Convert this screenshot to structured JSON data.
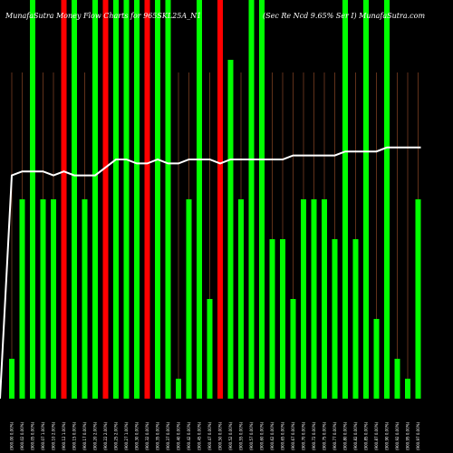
{
  "chart_data": {
    "type": "bar",
    "title_left": "MunafaSutra  Money Flow  Charts for 965SKL25A_N1",
    "title_right": "(Sec Re   Ncd 9.65% Ser I)  MunafaSutra.com",
    "categories": [
      "(900.00 0.00%)",
      "(900.02 0.00%)",
      "(900.05 0.00%)",
      "(900.07 1.00%)",
      "(900.10 2.00%)",
      "(900.12 1.00%)",
      "(900.15 0.00%)",
      "(900.17 0.00%)",
      "(900.20 2.00%)",
      "(900.22 2.00%)",
      "(900.25 2.00%)",
      "(900.27 1.00%)",
      "(900.30 0.00%)",
      "(900.32 0.00%)",
      "(900.35 0.00%)",
      "(900.37 0.00%)",
      "(900.40 0.00%)",
      "(900.42 0.00%)",
      "(900.45 0.00%)",
      "(900.47 0.00%)",
      "(900.50 0.00%)",
      "(900.52 0.00%)",
      "(900.55 0.00%)",
      "(900.57 0.00%)",
      "(900.60 0.00%)",
      "(900.62 0.00%)",
      "(900.65 0.00%)",
      "(900.67 0.00%)",
      "(900.70 0.00%)",
      "(900.72 0.00%)",
      "(900.75 0.00%)",
      "(900.77 0.00%)",
      "(900.80 0.00%)",
      "(900.82 0.00%)",
      "(900.85 0.00%)",
      "(900.87 0.00%)",
      "(900.90 0.00%)",
      "(900.92 0.00%)",
      "(900.95 0.00%)",
      "(900.97 0.00%)"
    ],
    "values": [
      10,
      50,
      100,
      50,
      50,
      100,
      100,
      50,
      100,
      100,
      100,
      100,
      100,
      100,
      100,
      100,
      5,
      50,
      100,
      25,
      100,
      85,
      50,
      100,
      100,
      40,
      40,
      25,
      50,
      50,
      50,
      40,
      100,
      40,
      100,
      20,
      100,
      10,
      5,
      50
    ],
    "colors": [
      "green",
      "green",
      "green",
      "green",
      "green",
      "red",
      "green",
      "green",
      "green",
      "red",
      "green",
      "green",
      "green",
      "red",
      "green",
      "green",
      "green",
      "green",
      "green",
      "green",
      "red",
      "green",
      "green",
      "green",
      "green",
      "green",
      "green",
      "green",
      "green",
      "green",
      "green",
      "green",
      "green",
      "green",
      "green",
      "green",
      "green",
      "green",
      "green",
      "green"
    ],
    "line_values": [
      56,
      57,
      57,
      57,
      56,
      57,
      56,
      56,
      56,
      58,
      60,
      60,
      59,
      59,
      60,
      59,
      59,
      60,
      60,
      60,
      59,
      60,
      60,
      60,
      60,
      60,
      60,
      61,
      61,
      61,
      61,
      61,
      62,
      62,
      62,
      62,
      63,
      63,
      63,
      63
    ],
    "ylim": [
      0,
      100
    ],
    "colors_hex": {
      "green": "#00ff00",
      "red": "#ff0000",
      "line": "#ffffff",
      "grid": "#a0522d"
    }
  }
}
